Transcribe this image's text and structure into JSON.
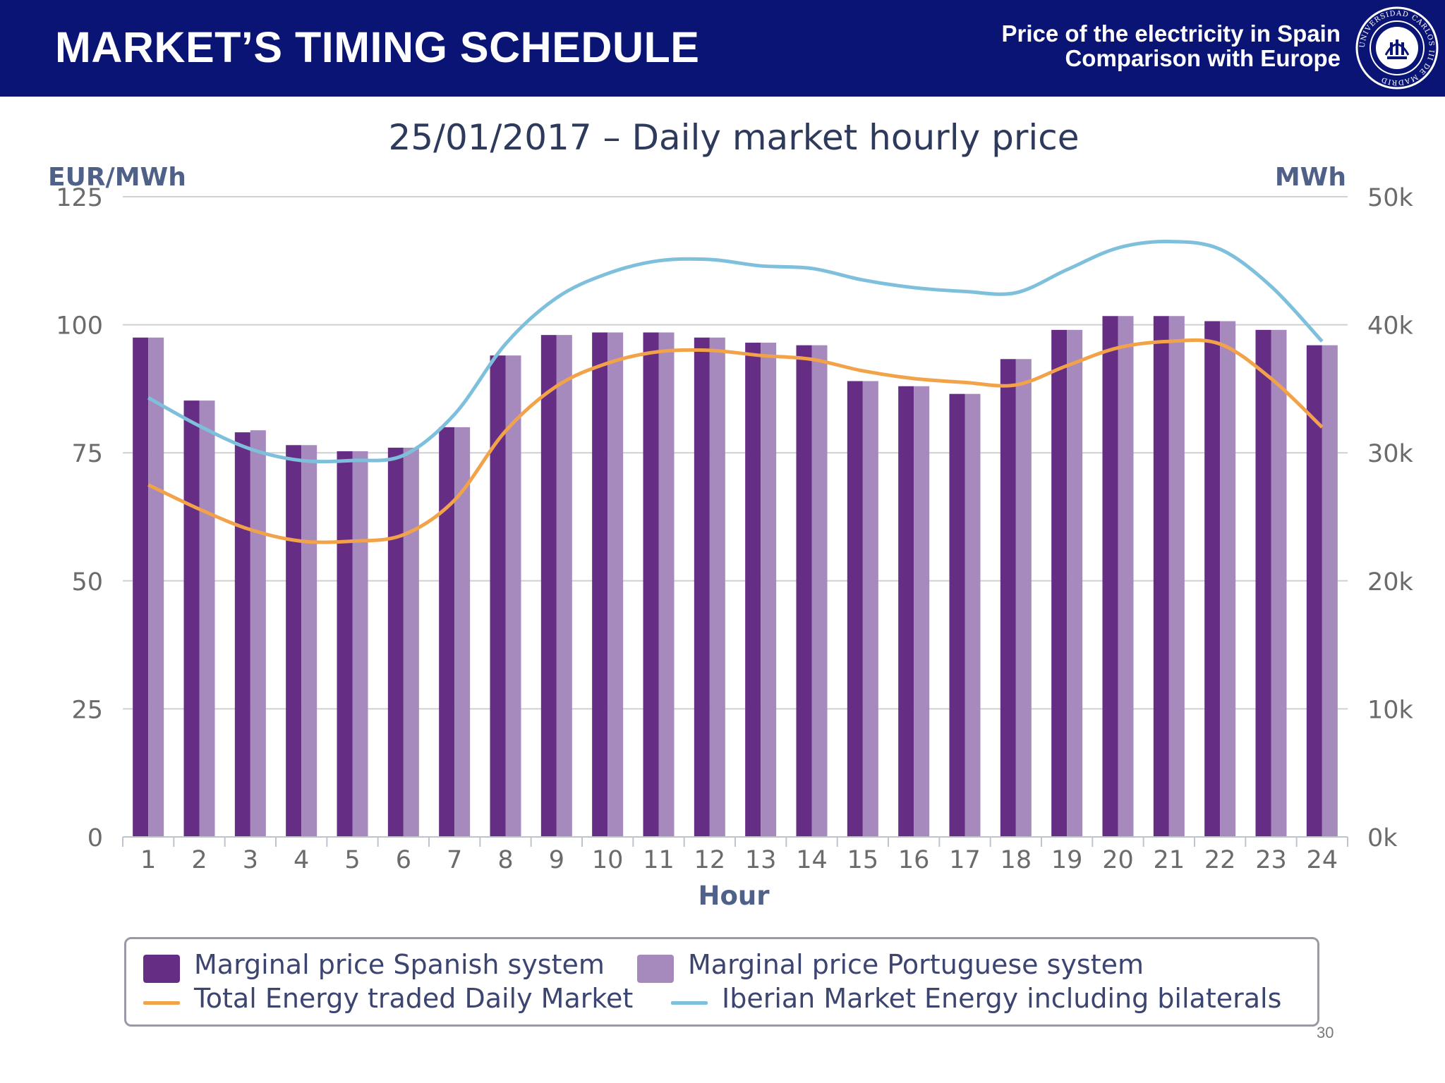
{
  "header": {
    "title": "MARKET’S TIMING SCHEDULE",
    "subtitle_line1": "Price of the electricity in Spain",
    "subtitle_line2": "Comparison with Europe",
    "seal_text": "UNIVERSIDAD CARLOS III DE MADRID"
  },
  "page_number": "30",
  "colors": {
    "header_bg": "#0a1475",
    "spanish": "#662d85",
    "portuguese": "#a689bd",
    "total_energy": "#f2a34a",
    "iberian_energy": "#7ec0dc"
  },
  "chart_data": {
    "type": "bar",
    "title": "25/01/2017 – Daily market hourly price",
    "xlabel": "Hour",
    "ylabel_left": "EUR/MWh",
    "ylabel_right": "MWh",
    "ylim_left": [
      0,
      125
    ],
    "ylim_right": [
      0,
      50000
    ],
    "yticks_left": [
      "0",
      "25",
      "50",
      "75",
      "100",
      "125"
    ],
    "yticks_right": [
      "0k",
      "10k",
      "20k",
      "30k",
      "40k",
      "50k"
    ],
    "grid": true,
    "categories": [
      "1",
      "2",
      "3",
      "4",
      "5",
      "6",
      "7",
      "8",
      "9",
      "10",
      "11",
      "12",
      "13",
      "14",
      "15",
      "16",
      "17",
      "18",
      "19",
      "20",
      "21",
      "22",
      "23",
      "24"
    ],
    "series": [
      {
        "name": "Marginal price Spanish system",
        "type": "bar",
        "axis": "left",
        "values": [
          97.5,
          85.2,
          79,
          76.5,
          75.3,
          76,
          80,
          94,
          98,
          98.5,
          98.5,
          97.5,
          96.5,
          96,
          89,
          88,
          86.5,
          93.3,
          99,
          101.7,
          101.7,
          100.7,
          99,
          96
        ]
      },
      {
        "name": "Marginal price Portuguese system",
        "type": "bar",
        "axis": "left",
        "values": [
          97.5,
          85.2,
          79.4,
          76.5,
          75.3,
          76,
          80,
          94,
          98,
          98.5,
          98.5,
          97.5,
          96.5,
          96,
          89,
          88,
          86.5,
          93.3,
          99,
          101.7,
          101.7,
          100.7,
          99,
          96
        ]
      },
      {
        "name": "Total Energy traded Daily Market",
        "type": "line",
        "axis": "right",
        "values": [
          27500,
          25600,
          24000,
          23100,
          23100,
          23600,
          26300,
          31700,
          35200,
          37000,
          37900,
          38000,
          37600,
          37300,
          36400,
          35800,
          35500,
          35300,
          36800,
          38200,
          38700,
          38500,
          35800,
          32000
        ]
      },
      {
        "name": "Iberian Market Energy including bilaterals",
        "type": "line",
        "axis": "right",
        "values": [
          34300,
          32100,
          30300,
          29400,
          29400,
          29800,
          33000,
          38500,
          42100,
          44000,
          45000,
          45100,
          44600,
          44400,
          43500,
          42900,
          42600,
          42500,
          44300,
          46000,
          46500,
          45900,
          43000,
          38700
        ]
      }
    ],
    "legend_position": "bottom"
  }
}
